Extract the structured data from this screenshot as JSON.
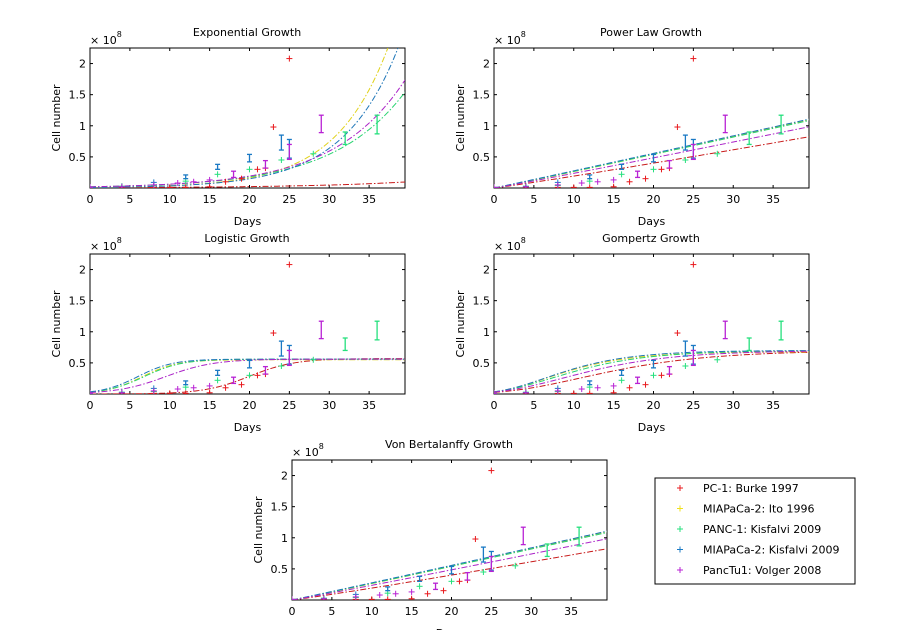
{
  "figure": {
    "legend": {
      "entries": [
        {
          "label": "PC-1: Burke 1997",
          "color": "#e8191d",
          "series_id": "pc1"
        },
        {
          "label": "MIAPaCa-2: Ito 1996",
          "color": "#f0e11c",
          "series_id": "mia_ito"
        },
        {
          "label": "PANC-1: Kisfalvi 2009",
          "color": "#25e07d",
          "series_id": "panc1"
        },
        {
          "label": "MIAPaCa-2: Kisfalvi 2009",
          "color": "#1a79c4",
          "series_id": "mia_kis"
        },
        {
          "label": "PancTu1: Volger 2008",
          "color": "#b822d4",
          "series_id": "panctu1"
        }
      ]
    }
  },
  "chart_data": [
    {
      "type": "scatter",
      "title": "Exponential Growth",
      "xlabel": "Days",
      "ylabel": "Cell number",
      "exponent_label": "x 10^8",
      "exponent_base": "× 10",
      "exponent_power": "8",
      "xlim": [
        0,
        39.5
      ],
      "ylim": [
        0,
        2.25
      ],
      "xticks": [
        0,
        5,
        10,
        15,
        20,
        25,
        30,
        35
      ],
      "yticks": [
        0.5,
        1,
        1.5,
        2
      ],
      "model": "exponential",
      "model_params": {
        "pc1": {
          "y0": 0.005,
          "r": 0.075
        },
        "mia_ito": {
          "y0": 0.008,
          "r": 0.151
        },
        "panc1": {
          "y0": 0.02,
          "r": 0.11
        },
        "mia_kis": {
          "y0": 0.008,
          "r": 0.146
        },
        "panctu1": {
          "y0": 0.02,
          "r": 0.113
        }
      }
    },
    {
      "type": "scatter",
      "title": "Power Law Growth",
      "xlabel": "Days",
      "ylabel": "Cell number",
      "exponent_label": "x 10^8",
      "exponent_base": "× 10",
      "exponent_power": "8",
      "xlim": [
        0,
        39.5
      ],
      "ylim": [
        0,
        2.25
      ],
      "xticks": [
        0,
        5,
        10,
        15,
        20,
        25,
        30,
        35
      ],
      "yticks": [
        0.5,
        1,
        1.5,
        2
      ],
      "model": "power",
      "model_params": {
        "pc1": {
          "a": 0.0167,
          "p": 1.06
        },
        "mia_ito": {
          "a": 0.024,
          "p": 1.04
        },
        "panc1": {
          "a": 0.0255,
          "p": 1.02
        },
        "mia_kis": {
          "a": 0.027,
          "p": 1.01
        },
        "panctu1": {
          "a": 0.0215,
          "p": 1.04
        }
      }
    },
    {
      "type": "scatter",
      "title": "Logistic Growth",
      "xlabel": "Days",
      "ylabel": "Cell number",
      "exponent_label": "x 10^8",
      "exponent_base": "× 10",
      "exponent_power": "8",
      "xlim": [
        0,
        39.5
      ],
      "ylim": [
        0,
        2.25
      ],
      "xticks": [
        0,
        5,
        10,
        15,
        20,
        25,
        30,
        35
      ],
      "yticks": [
        0.5,
        1,
        1.5,
        2
      ],
      "model": "logistic",
      "model_params": {
        "pc1": {
          "K": 0.57,
          "r": 0.35,
          "t0": 20
        },
        "mia_ito": {
          "K": 0.55,
          "r": 0.45,
          "t0": 6.5
        },
        "panc1": {
          "K": 0.56,
          "r": 0.42,
          "t0": 6.8
        },
        "mia_kis": {
          "K": 0.56,
          "r": 0.45,
          "t0": 6.0
        },
        "panctu1": {
          "K": 0.56,
          "r": 0.33,
          "t0": 9.5
        }
      }
    },
    {
      "type": "scatter",
      "title": "Gompertz Growth",
      "xlabel": "Days",
      "ylabel": "Cell number",
      "exponent_label": "x 10^8",
      "exponent_base": "× 10",
      "exponent_power": "8",
      "xlim": [
        0,
        39.5
      ],
      "ylim": [
        0,
        2.25
      ],
      "xticks": [
        0,
        5,
        10,
        15,
        20,
        25,
        30,
        35
      ],
      "yticks": [
        0.5,
        1,
        1.5,
        2
      ],
      "model": "gompertz",
      "model_params": {
        "pc1": {
          "K": 0.7,
          "b": 3.3,
          "c": 0.11
        },
        "mia_ito": {
          "K": 0.68,
          "b": 3.0,
          "c": 0.17
        },
        "panc1": {
          "K": 0.7,
          "b": 3.0,
          "c": 0.15
        },
        "mia_kis": {
          "K": 0.7,
          "b": 3.0,
          "c": 0.17
        },
        "panctu1": {
          "K": 0.7,
          "b": 3.1,
          "c": 0.13
        }
      }
    },
    {
      "type": "scatter",
      "title": "Von Bertalanffy Growth",
      "xlabel": "Days",
      "ylabel": "Cell number",
      "exponent_label": "x 10^8",
      "exponent_base": "× 10",
      "exponent_power": "8",
      "xlim": [
        0,
        39.5
      ],
      "ylim": [
        0,
        2.25
      ],
      "xticks": [
        0,
        5,
        10,
        15,
        20,
        25,
        30,
        35
      ],
      "yticks": [
        0.5,
        1,
        1.5,
        2
      ],
      "model": "power",
      "model_params": {
        "pc1": {
          "a": 0.0167,
          "p": 1.06
        },
        "mia_ito": {
          "a": 0.024,
          "p": 1.04
        },
        "panc1": {
          "a": 0.0255,
          "p": 1.02
        },
        "mia_kis": {
          "a": 0.027,
          "p": 1.01
        },
        "panctu1": {
          "a": 0.0215,
          "p": 1.04
        }
      }
    }
  ],
  "observations": {
    "pc1": [
      [
        0,
        0.01
      ],
      [
        4,
        0.01
      ],
      [
        8,
        0.01
      ],
      [
        10,
        0.01
      ],
      [
        12,
        0.01
      ],
      [
        15,
        0.02
      ],
      [
        17,
        0.1
      ],
      [
        19,
        0.15
      ],
      [
        21,
        0.3
      ],
      [
        22,
        0.32
      ],
      [
        23,
        0.98
      ],
      [
        25,
        2.08
      ]
    ],
    "panc1": [
      [
        0,
        0.01
      ],
      [
        4,
        0.03
      ],
      [
        8,
        0.04
      ],
      [
        12,
        0.11
      ],
      [
        16,
        0.22
      ],
      [
        20,
        0.3
      ],
      [
        24,
        0.45
      ],
      [
        28,
        0.55
      ],
      [
        32,
        0.8,
        0.1
      ],
      [
        36,
        1.02,
        0.15
      ]
    ],
    "mia_kis": [
      [
        0,
        0.01
      ],
      [
        4,
        0.02
      ],
      [
        8,
        0.09
      ],
      [
        12,
        0.18,
        0.03
      ],
      [
        16,
        0.34,
        0.04
      ],
      [
        20,
        0.48,
        0.06
      ],
      [
        24,
        0.73,
        0.12
      ],
      [
        25,
        0.63,
        0.15
      ]
    ],
    "panctu1": [
      [
        0,
        0.01
      ],
      [
        4,
        0.02
      ],
      [
        8,
        0.05
      ],
      [
        11,
        0.08
      ],
      [
        13,
        0.1
      ],
      [
        15,
        0.13
      ],
      [
        18,
        0.22,
        0.05
      ],
      [
        22,
        0.38,
        0.06
      ],
      [
        25,
        0.58,
        0.12
      ],
      [
        29,
        1.03,
        0.14
      ]
    ]
  },
  "line_styles": {
    "pc1": "#c81a1a",
    "mia_ito": "#e0d21a",
    "panc1": "#26d36f",
    "mia_kis": "#1e76b8",
    "panctu1": "#ab24c8"
  }
}
